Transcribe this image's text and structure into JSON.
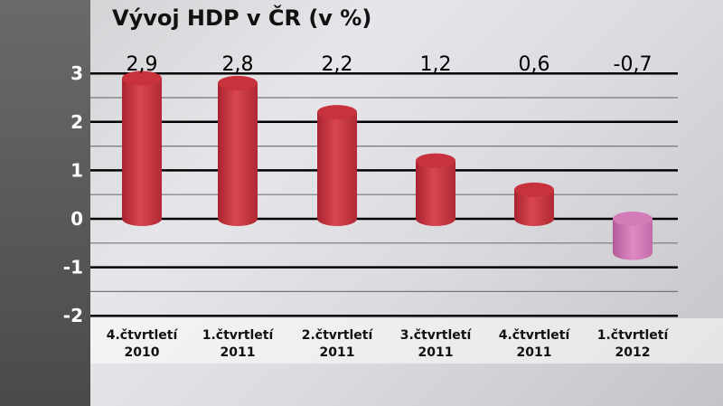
{
  "chart_data": {
    "type": "bar",
    "title": "Vývoj HDP v ČR (v %)",
    "categories": [
      [
        "4.čtvrtletí",
        "2010"
      ],
      [
        "1.čtvrtletí",
        "2011"
      ],
      [
        "2.čtvrtletí",
        "2011"
      ],
      [
        "3.čtvrtletí",
        "2011"
      ],
      [
        "4.čtvrtletí",
        "2011"
      ],
      [
        "1.čtvrtletí",
        "2012"
      ]
    ],
    "values": [
      2.9,
      2.8,
      2.2,
      1.2,
      0.6,
      -0.7
    ],
    "value_labels": [
      "2,9",
      "2,8",
      "2,2",
      "1,2",
      "0,6",
      "-0,7"
    ],
    "yticks": [
      3,
      2,
      1,
      0,
      -1,
      -2
    ],
    "ylim": [
      -2,
      3
    ],
    "grid": true,
    "colors": {
      "positive": "#c8323c",
      "negative": "#c86aa8"
    }
  }
}
